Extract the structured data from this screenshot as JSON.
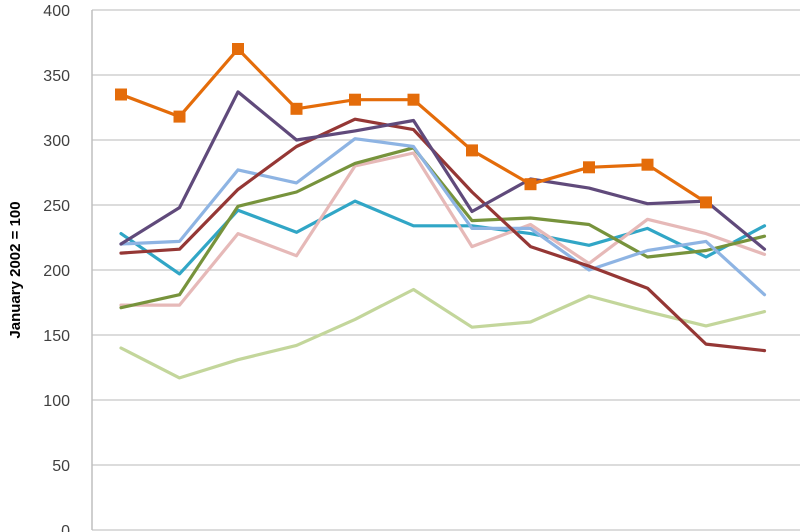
{
  "chart_data": {
    "type": "line",
    "title": "",
    "xlabel": "",
    "ylabel": "January  2002 = 100",
    "ylim": [
      0,
      400
    ],
    "yticks": [
      "0",
      "50",
      "100",
      "150",
      "200",
      "250",
      "300",
      "350",
      "400"
    ],
    "grid": true,
    "x": [
      1,
      2,
      3,
      4,
      5,
      6,
      7,
      8,
      9,
      10,
      11,
      12
    ],
    "series": [
      {
        "color": "#E46C0A",
        "marker": "square",
        "values": [
          335,
          318,
          370,
          324,
          331,
          331,
          292,
          266,
          279,
          281,
          252,
          null
        ]
      },
      {
        "color": "#604A7B",
        "values": [
          220,
          248,
          337,
          300,
          307,
          315,
          245,
          270,
          263,
          251,
          253,
          216
        ]
      },
      {
        "color": "#953735",
        "values": [
          213,
          216,
          262,
          295,
          316,
          308,
          260,
          218,
          203,
          186,
          143,
          138
        ]
      },
      {
        "color": "#8EB4E3",
        "values": [
          220,
          222,
          277,
          267,
          301,
          295,
          232,
          232,
          200,
          215,
          222,
          181
        ]
      },
      {
        "color": "#77933C",
        "values": [
          171,
          181,
          249,
          260,
          282,
          294,
          238,
          240,
          235,
          210,
          215,
          226
        ]
      },
      {
        "color": "#E6B9B8",
        "values": [
          173,
          173,
          228,
          211,
          280,
          290,
          218,
          235,
          205,
          239,
          228,
          212
        ]
      },
      {
        "color": "#31A6C6",
        "values": [
          228,
          197,
          246,
          229,
          253,
          234,
          234,
          228,
          219,
          232,
          210,
          234
        ]
      },
      {
        "color": "#C3D69B",
        "values": [
          140,
          117,
          131,
          142,
          162,
          185,
          156,
          160,
          180,
          168,
          157,
          168
        ]
      }
    ]
  }
}
